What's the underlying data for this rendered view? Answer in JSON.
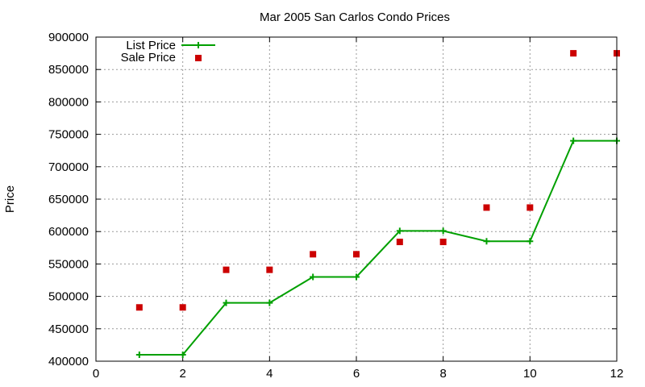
{
  "chart_data": {
    "type": "line",
    "title": "Mar 2005 San Carlos Condo Prices",
    "xlabel": "",
    "ylabel": "Price",
    "xlim": [
      0,
      12
    ],
    "ylim": [
      400000,
      900000
    ],
    "xticks": [
      "0",
      "2",
      "4",
      "6",
      "8",
      "10",
      "12"
    ],
    "yticks": [
      "400000",
      "450000",
      "500000",
      "550000",
      "600000",
      "650000",
      "700000",
      "750000",
      "800000",
      "850000",
      "900000"
    ],
    "grid": true,
    "legend_position": "top-left",
    "x": [
      1,
      2,
      3,
      4,
      5,
      6,
      7,
      8,
      9,
      10,
      11,
      12
    ],
    "series": [
      {
        "name": "List Price",
        "style": "line-with-plus-markers",
        "color": "#00a000",
        "values": [
          410000,
          410000,
          490000,
          490000,
          530000,
          530000,
          601000,
          601000,
          585000,
          585000,
          740000,
          740000
        ]
      },
      {
        "name": "Sale Price",
        "style": "square-markers",
        "color": "#cc0000",
        "values": [
          483000,
          483000,
          541000,
          541000,
          565000,
          565000,
          584000,
          584000,
          637000,
          637000,
          875000,
          875000
        ]
      }
    ]
  }
}
